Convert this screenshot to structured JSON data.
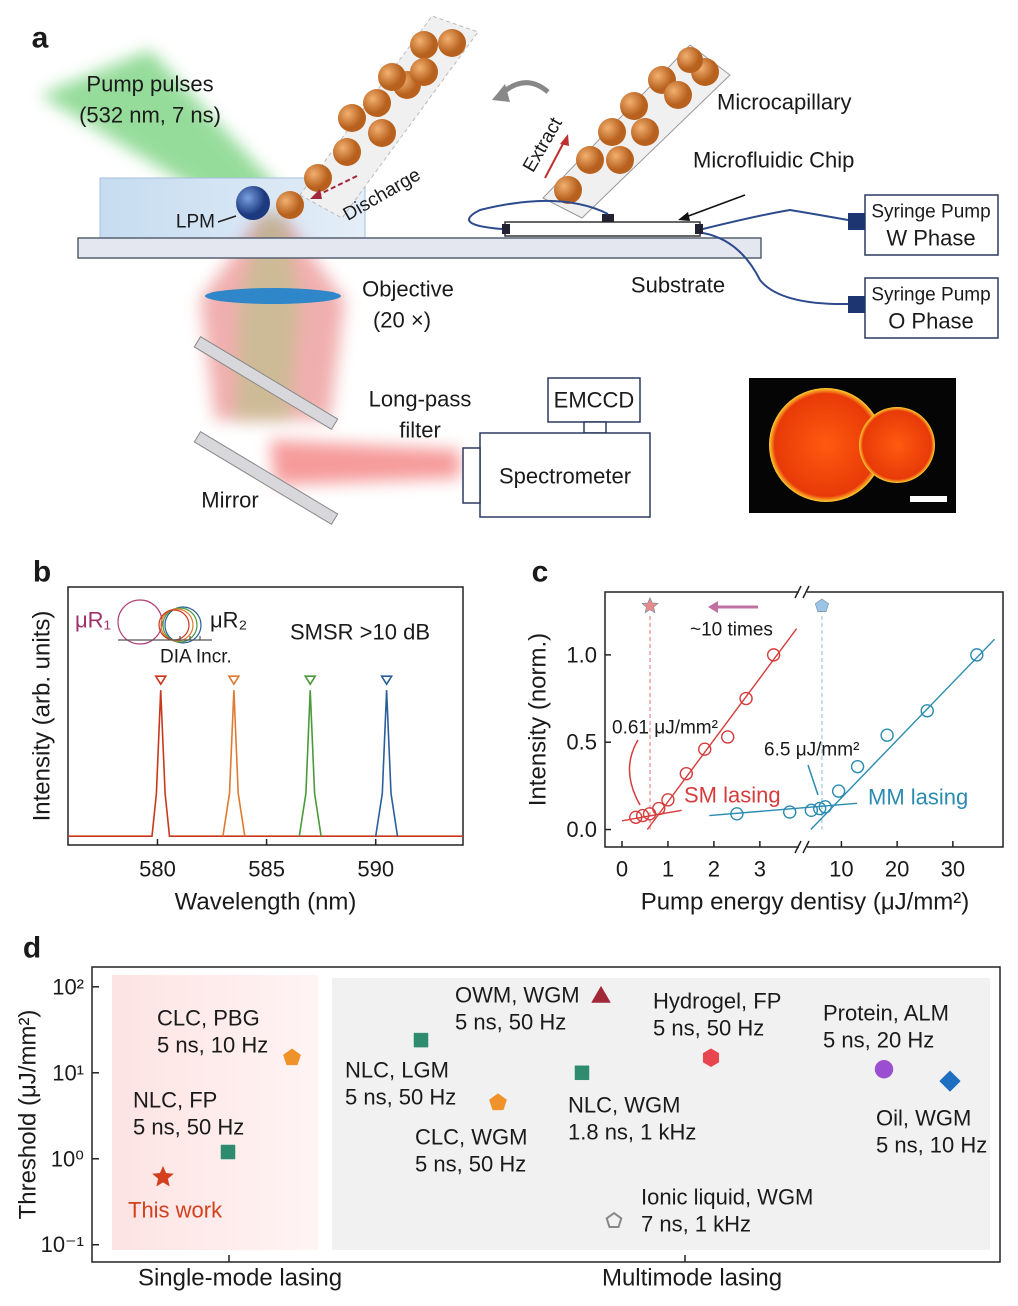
{
  "diagram": {
    "panel": "a",
    "pump": [
      "Pump pulses",
      "(532 nm, 7 ns)"
    ],
    "discharge": "Discharge",
    "lpm": "LPM",
    "extract": "Extract",
    "microcapillary": "Microcapillary",
    "chip": "Microfluidic Chip",
    "pump_w": [
      "Syringe Pump",
      "W Phase"
    ],
    "pump_o": [
      "Syringe Pump",
      "O Phase"
    ],
    "substrate": "Substrate",
    "objective": [
      "Objective",
      "(20 ×)"
    ],
    "filter": [
      "Long-pass",
      "filter"
    ],
    "emccd": "EMCCD",
    "spectrometer": "Spectrometer",
    "mirror": "Mirror"
  },
  "chart_data": [
    {
      "panel": "b",
      "type": "line",
      "xlabel": "Wavelength (nm)",
      "ylabel": "Intensity (arb. units)",
      "xlim": [
        575.9,
        594
      ],
      "ylim": [
        -0.05,
        1.7
      ],
      "xticks": [
        580,
        585,
        590
      ],
      "annotations": {
        "r1": "μR₁",
        "r2": "μR₂",
        "dia": "DIA Incr.",
        "smsr": "SMSR >10 dB"
      },
      "series": [
        {
          "color": "#c8381c",
          "x": [
            575.9,
            579.75,
            579.95,
            580.15,
            580.35,
            580.55,
            594
          ],
          "values": [
            0.01,
            0.01,
            0.3,
            1.0,
            0.3,
            0.01,
            0.01
          ]
        },
        {
          "color": "#e07a30",
          "x": [
            583.0,
            583.3,
            583.5,
            583.7,
            584.0
          ],
          "values": [
            0.01,
            0.3,
            1.0,
            0.3,
            0.01
          ]
        },
        {
          "color": "#4a9a3a",
          "x": [
            586.5,
            586.8,
            587.0,
            587.2,
            587.5
          ],
          "values": [
            0.01,
            0.3,
            1.0,
            0.3,
            0.01
          ]
        },
        {
          "color": "#2a5f9a",
          "x": [
            590.0,
            590.3,
            590.5,
            590.7,
            591.0
          ],
          "values": [
            0.01,
            0.3,
            1.0,
            0.3,
            0.01
          ]
        }
      ]
    },
    {
      "panel": "c",
      "type": "scatter",
      "xlabel": "Pump energy dentisy (μJ/mm²)",
      "ylabel": "Intensity (norm.)",
      "xlim": [
        [
          -0.37,
          3.83
        ],
        [
          4,
          39
        ]
      ],
      "ylim": [
        -0.1,
        1.36
      ],
      "xticks": [
        0,
        1,
        2,
        3,
        10,
        20,
        30
      ],
      "yticks": [
        {
          "value": 0,
          "label": "0.0"
        },
        0.5,
        {
          "value": 1,
          "label": "1.0"
        }
      ],
      "series": [
        {
          "name": "SM lasing",
          "color": "#d63c3c",
          "x": [
            0.3,
            0.45,
            0.6,
            0.8,
            1.0,
            1.4,
            1.8,
            2.3,
            2.7,
            3.3
          ],
          "values": [
            0.07,
            0.08,
            0.09,
            0.12,
            0.17,
            0.32,
            0.46,
            0.53,
            0.75,
            1.0
          ],
          "fits": [
            {
              "x": [
                0.0,
                1.3
              ],
              "values": [
                0.05,
                0.11
              ]
            },
            {
              "x": [
                0.55,
                3.8
              ],
              "values": [
                0.0,
                1.15
              ]
            }
          ]
        },
        {
          "name": "MM lasing",
          "color": "#2a8bb0",
          "x": [
            2.5,
            3.65,
            4.6,
            6.1,
            7.1,
            9.5,
            12.9,
            18.2,
            25.4,
            34.3
          ],
          "values": [
            0.09,
            0.1,
            0.11,
            0.12,
            0.13,
            0.22,
            0.36,
            0.54,
            0.68,
            1.0
          ],
          "fits": [
            {
              "x": [
                1.9,
                12.8
              ],
              "values": [
                0.08,
                0.15
              ]
            },
            {
              "x": [
                4.5,
                37.5
              ],
              "values": [
                0.0,
                1.09
              ]
            }
          ]
        }
      ],
      "thresholds": {
        "values": [
          0.61,
          6.5
        ],
        "value_labels": [
          "0.61 μJ/mm²",
          "6.5 μJ/mm²"
        ],
        "colors": [
          "#e88a8a",
          "#9cc4e4"
        ],
        "markers": [
          "star",
          "pentagon"
        ]
      },
      "annotation": "~10 times"
    },
    {
      "panel": "d",
      "type": "scatter",
      "ylabel": "Threshold (μJ/mm²)",
      "ylim": [
        0.063,
        170
      ],
      "log_y": true,
      "yticks": [
        {
          "value": 0.1,
          "label": "10⁻¹"
        },
        {
          "value": 1,
          "label": "10⁰"
        },
        {
          "value": 10,
          "label": "10¹"
        },
        {
          "value": 100,
          "label": "10²"
        }
      ],
      "groups": [
        {
          "name": "Single-mode lasing",
          "points": [
            {
              "label": [
                "This work"
              ],
              "value": 0.61,
              "marker": "star",
              "color": "#d2401d"
            },
            {
              "label": [
                "NLC, FP",
                "5 ns, 50 Hz"
              ],
              "value": 1.2,
              "marker": "square",
              "color": "#2e8b6e"
            },
            {
              "label": [
                "CLC, PBG",
                "5 ns, 10 Hz"
              ],
              "value": 15,
              "marker": "pentagon",
              "color": "#f0922a"
            }
          ]
        },
        {
          "name": "Multimode lasing",
          "points": [
            {
              "label": [
                "NLC, LGM",
                "5 ns, 50 Hz"
              ],
              "value": 24,
              "marker": "square",
              "color": "#2e8b6e"
            },
            {
              "label": [
                "CLC, WGM",
                "5 ns, 50 Hz"
              ],
              "value": 4.5,
              "marker": "pentagon",
              "color": "#f0922a"
            },
            {
              "label": [
                "OWM, WGM",
                "5 ns, 50 Hz"
              ],
              "value": 76,
              "marker": "triangle",
              "color": "#a02838"
            },
            {
              "label": [
                "NLC, WGM",
                "1.8 ns, 1 kHz"
              ],
              "value": 10,
              "marker": "square",
              "color": "#2e8b6e"
            },
            {
              "label": [
                "Ionic liquid, WGM",
                "7 ns, 1 kHz"
              ],
              "value": 0.19,
              "marker": "pentagon-open",
              "color": "#888888"
            },
            {
              "label": [
                "Hydrogel, FP",
                "5 ns, 50 Hz"
              ],
              "value": 15,
              "marker": "hexagon",
              "color": "#e8464e"
            },
            {
              "label": [
                "Protein, ALM",
                "5 ns, 20 Hz"
              ],
              "value": 11,
              "marker": "circle",
              "color": "#9b4fd0"
            },
            {
              "label": [
                "Oil, WGM",
                "5 ns, 10 Hz"
              ],
              "value": 8,
              "marker": "diamond",
              "color": "#1f6fc0"
            }
          ]
        }
      ]
    }
  ]
}
